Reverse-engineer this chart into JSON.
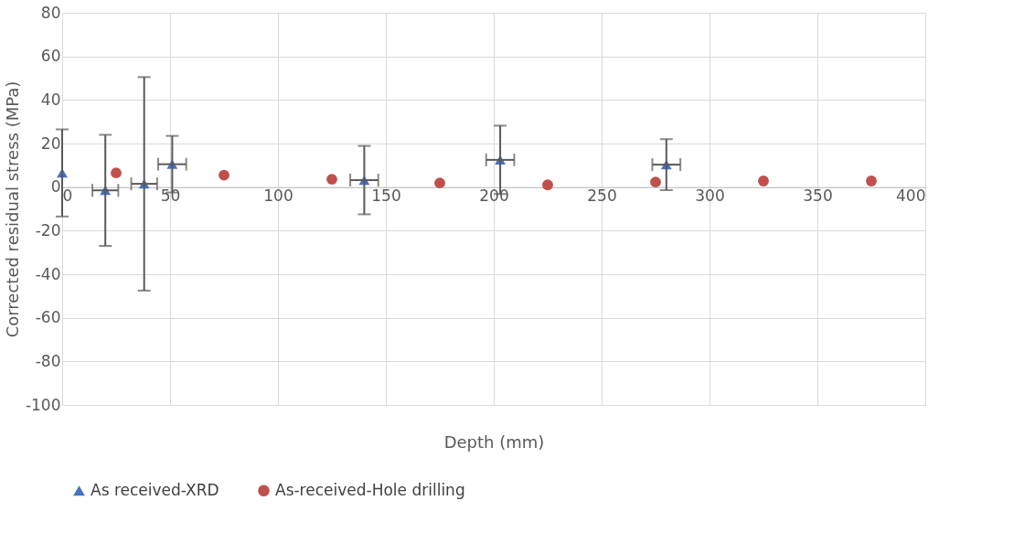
{
  "chart_data": {
    "type": "scatter",
    "xlabel": "Depth (mm)",
    "ylabel": "Corrected residual stress (MPa)",
    "xlim": [
      0,
      400
    ],
    "xticks": [
      0,
      50,
      100,
      150,
      200,
      250,
      300,
      350,
      400
    ],
    "ylim": [
      -100,
      80
    ],
    "yticks": [
      -100,
      -80,
      -60,
      -40,
      -20,
      0,
      20,
      40,
      60,
      80
    ],
    "grid": true,
    "legend": "bottom",
    "series": [
      {
        "name": "As received-XRD",
        "color": "#4472c4",
        "marker": "triangle",
        "x": [
          0,
          20,
          38,
          51,
          140,
          203,
          280
        ],
        "values": [
          6.5,
          -1.5,
          1.5,
          10.5,
          3.2,
          12.5,
          10.3
        ],
        "errors": [
          20,
          25.5,
          49,
          13,
          15.7,
          15.7,
          11.7
        ],
        "xerrors": [
          null,
          6,
          6,
          6.5,
          6.5,
          6.5,
          6.5
        ]
      },
      {
        "name": "As-received-Hole drilling",
        "color": "#c0504d",
        "marker": "circle",
        "x": [
          25,
          75,
          125,
          175,
          225,
          275,
          325,
          375
        ],
        "values": [
          6.5,
          5.5,
          3.6,
          1.9,
          1.0,
          2.3,
          2.8,
          2.8
        ]
      }
    ]
  }
}
